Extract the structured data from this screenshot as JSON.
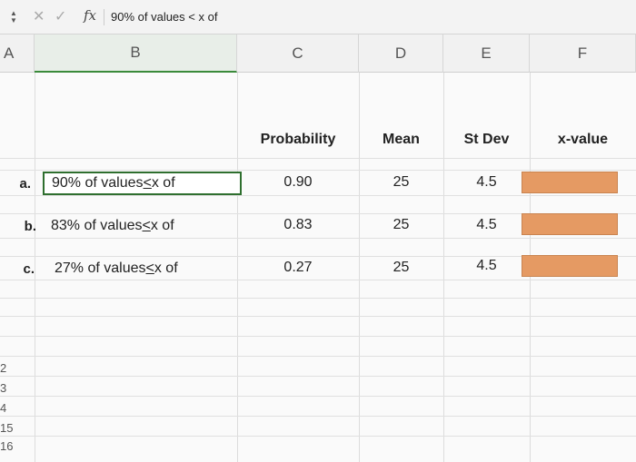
{
  "formula_bar": {
    "stepper_up": "▲",
    "stepper_down": "▼",
    "cancel": "✕",
    "confirm": "✓",
    "fx": "fx",
    "formula": "90% of values < x of"
  },
  "columns": [
    "A",
    "B",
    "C",
    "D",
    "E",
    "F"
  ],
  "headers": {
    "probability": "Probability",
    "mean": "Mean",
    "stdev": "St Dev",
    "xvalue": "x-value"
  },
  "rows": [
    {
      "letter": "a.",
      "prefix": "90% of values ",
      "lt": "<",
      "suffix": " x of",
      "probability": "0.90",
      "mean": "25",
      "stdev": "4.5",
      "xvalue": ""
    },
    {
      "letter": "b.",
      "prefix": "83% of values ",
      "lt": "<",
      "suffix": " x of",
      "probability": "0.83",
      "mean": "25",
      "stdev": "4.5",
      "xvalue": ""
    },
    {
      "letter": "c.",
      "prefix": "27% of values ",
      "lt": "<",
      "suffix": " x of",
      "probability": "0.27",
      "mean": "25",
      "stdev": "4.5",
      "xvalue": ""
    }
  ],
  "row_numbers": [
    "2",
    "3",
    "4",
    "15",
    "16"
  ],
  "colors": {
    "xvalue_fill": "#e59a63",
    "active_border": "#2f6f2f"
  }
}
